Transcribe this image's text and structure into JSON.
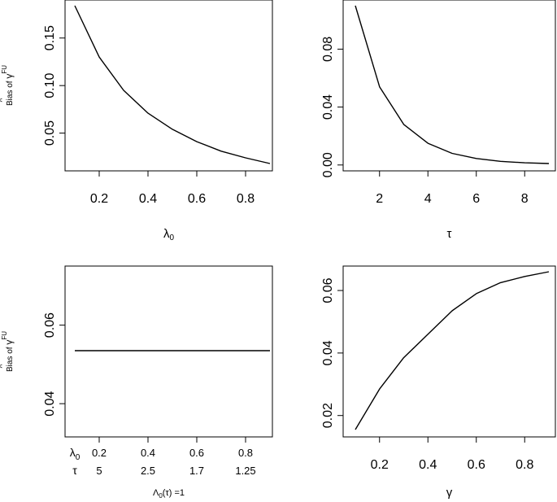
{
  "figure": {
    "panels_layout": "2x2"
  },
  "chart_data": [
    {
      "type": "line",
      "ylabel_prefix": "Bias of ",
      "ylabel_symbol": "γ",
      "ylabel_hat": "^",
      "ylabel_superscript": "FU",
      "xlabel_main": "λ",
      "xlabel_sub": "0",
      "xlim": [
        0.1,
        0.9
      ],
      "ylim": [
        0.018,
        0.184
      ],
      "xticks": [
        0.2,
        0.4,
        0.6,
        0.8
      ],
      "xtick_labels": [
        "0.2",
        "0.4",
        "0.6",
        "0.8"
      ],
      "yticks": [
        0.05,
        0.1,
        0.15
      ],
      "ytick_labels": [
        "0.05",
        "0.10",
        "0.15"
      ],
      "x": [
        0.1,
        0.2,
        0.3,
        0.4,
        0.5,
        0.6,
        0.7,
        0.8,
        0.9
      ],
      "series": [
        {
          "values": [
            0.184,
            0.13,
            0.095,
            0.071,
            0.054,
            0.041,
            0.031,
            0.024,
            0.018
          ]
        }
      ],
      "grid": false
    },
    {
      "type": "line",
      "xlabel_main": "τ",
      "xlim": [
        1,
        9
      ],
      "ylim": [
        0.001,
        0.11
      ],
      "xticks": [
        2,
        4,
        6,
        8
      ],
      "xtick_labels": [
        "2",
        "4",
        "6",
        "8"
      ],
      "yticks": [
        0.0,
        0.04,
        0.08
      ],
      "ytick_labels": [
        "0.00",
        "0.04",
        "0.08"
      ],
      "x": [
        1,
        2,
        3,
        4,
        5,
        6,
        7,
        8,
        9
      ],
      "series": [
        {
          "values": [
            0.11,
            0.054,
            0.028,
            0.015,
            0.008,
            0.0045,
            0.0025,
            0.0015,
            0.001
          ]
        }
      ],
      "grid": false
    },
    {
      "type": "line",
      "ylabel_prefix": "Bias of ",
      "ylabel_symbol": "γ",
      "ylabel_hat": "^",
      "ylabel_superscript": "FU",
      "xlabel_main": "Λ",
      "xlabel_sub": "0",
      "xlabel_rest": "(τ) =1",
      "xlim": [
        0.1,
        0.9
      ],
      "ylim": [
        0.0334,
        0.0736
      ],
      "yticks": [
        0.04,
        0.06
      ],
      "ytick_labels": [
        "0.04",
        "0.06"
      ],
      "extra_axis_rows": [
        {
          "label_main": "λ",
          "label_sub": "0",
          "labels": [
            "0.2",
            "0.4",
            "0.6",
            "0.8"
          ]
        },
        {
          "label_main": "τ",
          "label_sub": "",
          "labels": [
            "5",
            "2.5",
            "1.7",
            "1.25"
          ]
        }
      ],
      "xticks": [
        0.2,
        0.4,
        0.6,
        0.8
      ],
      "x": [
        0.1,
        0.9
      ],
      "series": [
        {
          "values": [
            0.0535,
            0.0535
          ]
        }
      ],
      "grid": false
    },
    {
      "type": "line",
      "xlabel_main": "γ",
      "xlim": [
        0.1,
        0.9
      ],
      "ylim": [
        0.0155,
        0.066
      ],
      "xticks": [
        0.2,
        0.4,
        0.6,
        0.8
      ],
      "xtick_labels": [
        "0.2",
        "0.4",
        "0.6",
        "0.8"
      ],
      "yticks": [
        0.02,
        0.04,
        0.06
      ],
      "ytick_labels": [
        "0.02",
        "0.04",
        "0.06"
      ],
      "x": [
        0.1,
        0.2,
        0.3,
        0.4,
        0.5,
        0.6,
        0.7,
        0.8,
        0.9
      ],
      "series": [
        {
          "values": [
            0.0155,
            0.0285,
            0.0385,
            0.046,
            0.0535,
            0.059,
            0.0625,
            0.0645,
            0.066
          ]
        }
      ],
      "grid": false
    }
  ]
}
